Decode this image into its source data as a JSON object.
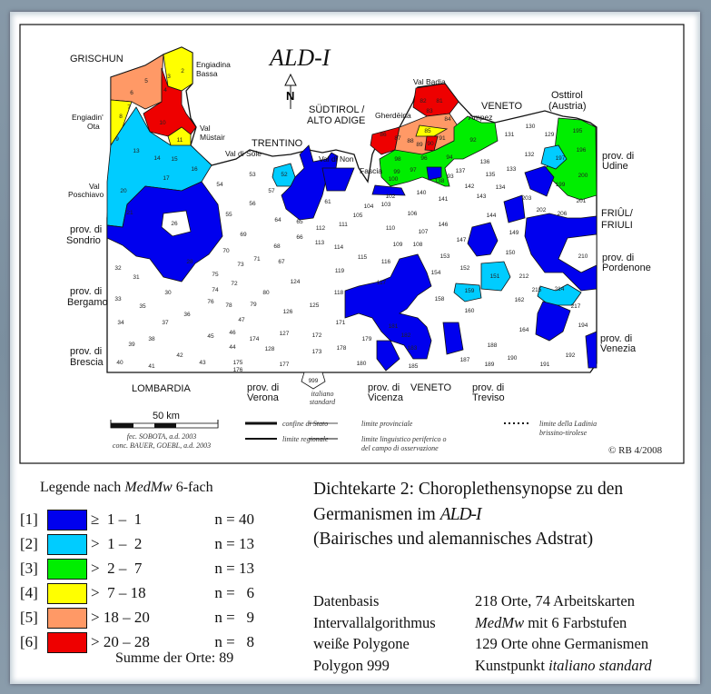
{
  "map": {
    "logo": "ALD-I",
    "north": "N",
    "regions": {
      "grischun": "GRISCHUN",
      "engiadina_bassa": [
        "Engiadina",
        "Bassa"
      ],
      "engiadin_ota": [
        "Engiadin'",
        "Ota"
      ],
      "val_mustair": [
        "Val",
        "Müstair"
      ],
      "val_poschiavo": [
        "Val",
        "Poschiavo"
      ],
      "sondrio": [
        "prov. di",
        "Sondrio"
      ],
      "bergamo": [
        "prov. di",
        "Bergamo"
      ],
      "brescia": [
        "prov. di",
        "Brescia"
      ],
      "lombardia": "LOMBARDIA",
      "verona": [
        "prov. di",
        "Verona"
      ],
      "italiano_standard": [
        "italiano",
        "standard"
      ],
      "vicenza": [
        "prov. di",
        "Vicenza"
      ],
      "veneto_south": "VENETO",
      "treviso": [
        "prov. di",
        "Treviso"
      ],
      "venezia": [
        "prov. di",
        "Venezia"
      ],
      "pordenone": [
        "prov. di",
        "Pordenone"
      ],
      "friuli": [
        "FRIÛL/",
        "FRIULI"
      ],
      "udine": [
        "prov. di",
        "Udine"
      ],
      "osttirol": [
        "Osttirol",
        "(Austria)"
      ],
      "veneto_north": "VENETO",
      "ampez": "Ampez",
      "val_badia": "Val Badia",
      "gherdeina": "Gherdëina",
      "sudtirol": [
        "SÜDTIROL /",
        "ALTO ADIGE"
      ],
      "trentino": "TRENTINO",
      "val_di_sole": "Val di Sole",
      "val_di_non": "Val di Non",
      "fascia": "Fascia"
    },
    "polygon_999": "999",
    "scale": {
      "label": "50 km"
    },
    "credits": [
      "fec. SOBOTA, a.d. 2003",
      "conc. BAUER, GOEBL, a.d. 2003"
    ],
    "line_legend": {
      "confine_stato": "confine di Stato",
      "limite_regionale": "limite regionale",
      "limite_provinciale": "limite provinciale",
      "limite_linguistico": [
        "limite linguistico periferico o",
        "del campo di osservazione"
      ],
      "limite_ladinia": [
        "limite della Ladinia",
        "brissino-tirolese"
      ]
    },
    "copyright": "© RB 4/2008",
    "cells": [
      "2",
      "3",
      "4",
      "5",
      "6",
      "7",
      "8",
      "9",
      "10",
      "11",
      "13",
      "14",
      "15",
      "16",
      "17",
      "20",
      "21",
      "26",
      "28",
      "30",
      "31",
      "32",
      "33",
      "34",
      "35",
      "36",
      "37",
      "38",
      "39",
      "40",
      "41",
      "42",
      "43",
      "44",
      "45",
      "46",
      "47",
      "52",
      "53",
      "54",
      "55",
      "56",
      "57",
      "61",
      "64",
      "65",
      "66",
      "67",
      "68",
      "69",
      "70",
      "71",
      "72",
      "73",
      "74",
      "75",
      "76",
      "78",
      "79",
      "80",
      "81",
      "82",
      "83",
      "84",
      "85",
      "86",
      "87",
      "88",
      "89",
      "90",
      "91",
      "92",
      "93",
      "94",
      "96",
      "97",
      "98",
      "99",
      "100",
      "102",
      "103",
      "104",
      "105",
      "106",
      "107",
      "108",
      "109",
      "110",
      "111",
      "112",
      "113",
      "114",
      "115",
      "116",
      "117",
      "118",
      "119",
      "124",
      "125",
      "126",
      "127",
      "128",
      "129",
      "130",
      "131",
      "132",
      "133",
      "134",
      "135",
      "136",
      "137",
      "138",
      "140",
      "141",
      "142",
      "143",
      "144",
      "146",
      "147",
      "149",
      "150",
      "151",
      "152",
      "153",
      "154",
      "158",
      "159",
      "160",
      "162",
      "164",
      "171",
      "172",
      "173",
      "174",
      "175",
      "176",
      "177",
      "178",
      "179",
      "180",
      "181",
      "182",
      "183",
      "185",
      "187",
      "188",
      "189",
      "190",
      "191",
      "192",
      "194",
      "195",
      "196",
      "197",
      "199",
      "200",
      "201",
      "202",
      "203",
      "206",
      "210",
      "212",
      "214",
      "215",
      "217"
    ]
  },
  "legend": {
    "title_prefix": "Legende nach ",
    "title_method": "MedMw",
    "title_suffix": " 6-fach",
    "classes": [
      {
        "idx": "[1]",
        "range": "≥  1 –  1",
        "n": "n = 40",
        "color": "#0000ee"
      },
      {
        "idx": "[2]",
        "range": ">  1 –  2",
        "n": "n = 13",
        "color": "#00ccff"
      },
      {
        "idx": "[3]",
        "range": ">  2 –  7",
        "n": "n = 13",
        "color": "#00ee00"
      },
      {
        "idx": "[4]",
        "range": ">  7 – 18",
        "n": "n =   6",
        "color": "#ffff00"
      },
      {
        "idx": "[5]",
        "range": "> 18 – 20",
        "n": "n =   9",
        "color": "#ff9966"
      },
      {
        "idx": "[6]",
        "range": "> 20 – 28",
        "n": "n =   8",
        "color": "#ee0000"
      }
    ],
    "sum": "Summe der Orte: 89"
  },
  "caption": {
    "line1": "Dichtekarte 2: Choroplethensynopse zu den",
    "line2_prefix": "Germanismen im ",
    "line2_logo": "ALD-I",
    "line3": "(Bairisches und alemannisches Adstrat)"
  },
  "basis": [
    {
      "key": "Datenbasis",
      "value": "218 Orte, 74 Arbeitskarten"
    },
    {
      "key": "Intervallalgorithmus",
      "value_italic": "MedMw",
      "value": " mit 6 Farbstufen"
    },
    {
      "key": "weiße Polygone",
      "value": "129 Orte ohne Germanismen"
    },
    {
      "key": "Polygon 999",
      "value": "Kunstpunkt ",
      "value_italic": "italiano standard"
    }
  ]
}
